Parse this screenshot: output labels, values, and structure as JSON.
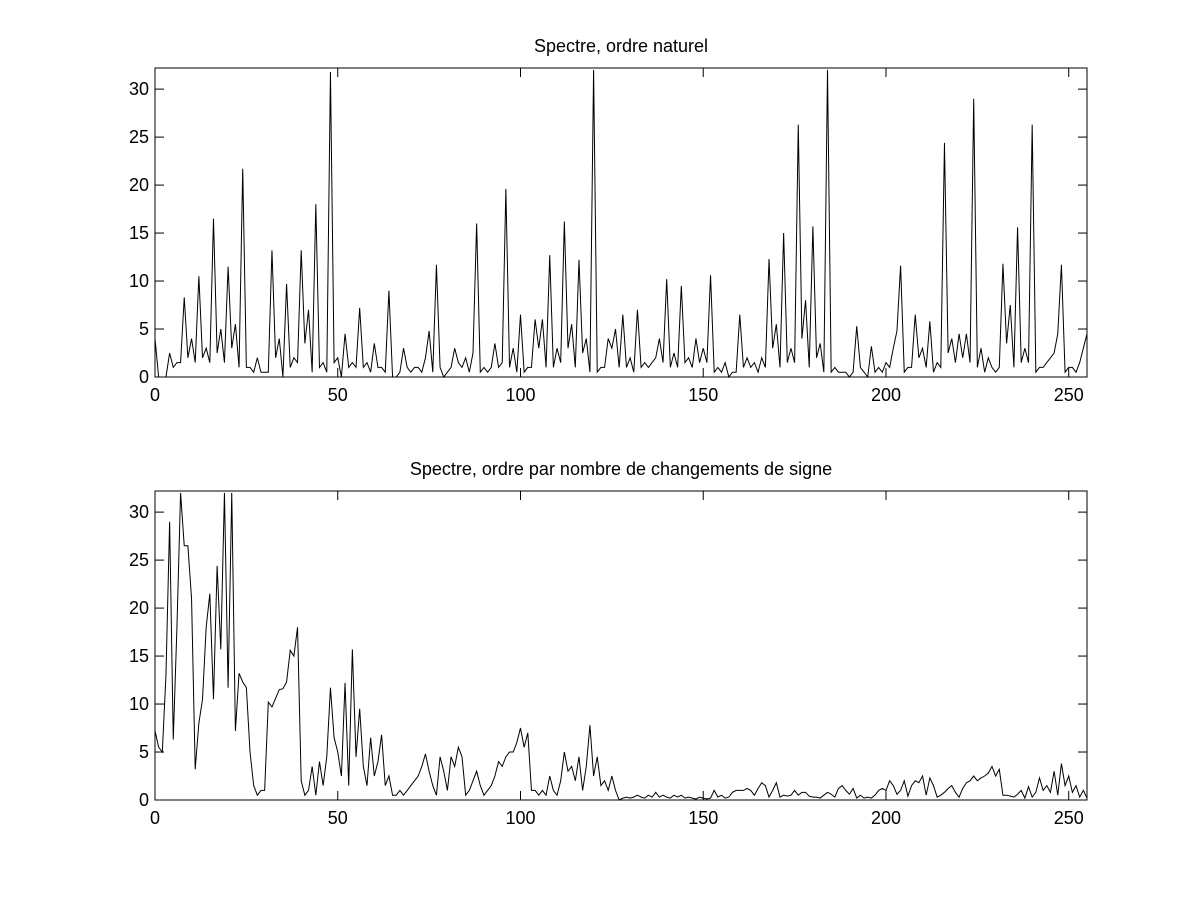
{
  "chart_data": [
    {
      "type": "line",
      "title": "Spectre, ordre naturel",
      "color": "#000000",
      "x": [
        0,
        1,
        2,
        3,
        4,
        5,
        6,
        7,
        8,
        9,
        10,
        11,
        12,
        13,
        14,
        15,
        16,
        17,
        18,
        19,
        20,
        21,
        22,
        23,
        24,
        25,
        26,
        27,
        28,
        29,
        30,
        31,
        32,
        33,
        34,
        35,
        36,
        37,
        38,
        39,
        40,
        41,
        42,
        43,
        44,
        45,
        46,
        47,
        48,
        49,
        50,
        51,
        52,
        53,
        54,
        55,
        56,
        57,
        58,
        59,
        60,
        61,
        62,
        63,
        64,
        65,
        66,
        67,
        68,
        69,
        70,
        71,
        72,
        73,
        74,
        75,
        76,
        77,
        78,
        79,
        80,
        81,
        82,
        83,
        84,
        85,
        86,
        87,
        88,
        89,
        90,
        91,
        92,
        93,
        94,
        95,
        96,
        97,
        98,
        99,
        100,
        101,
        102,
        103,
        104,
        105,
        106,
        107,
        108,
        109,
        110,
        111,
        112,
        113,
        114,
        115,
        116,
        117,
        118,
        119,
        120,
        121,
        122,
        123,
        124,
        125,
        126,
        127,
        128,
        129,
        130,
        131,
        132,
        133,
        134,
        135,
        136,
        137,
        138,
        139,
        140,
        141,
        142,
        143,
        144,
        145,
        146,
        147,
        148,
        149,
        150,
        151,
        152,
        153,
        154,
        155,
        156,
        157,
        158,
        159,
        160,
        161,
        162,
        163,
        164,
        165,
        166,
        167,
        168,
        169,
        170,
        171,
        172,
        173,
        174,
        175,
        176,
        177,
        178,
        179,
        180,
        181,
        182,
        183,
        184,
        185,
        186,
        187,
        188,
        189,
        190,
        191,
        192,
        193,
        194,
        195,
        196,
        197,
        198,
        199,
        200,
        201,
        202,
        203,
        204,
        205,
        206,
        207,
        208,
        209,
        210,
        211,
        212,
        213,
        214,
        215,
        216,
        217,
        218,
        219,
        220,
        221,
        222,
        223,
        224,
        225,
        226,
        227,
        228,
        229,
        230,
        231,
        232,
        233,
        234,
        235,
        236,
        237,
        238,
        239,
        240,
        241,
        242,
        243,
        244,
        245,
        246,
        247,
        248,
        249,
        250,
        251,
        252,
        253,
        254,
        255
      ],
      "values": [
        4,
        0,
        0,
        0,
        2.5,
        1,
        1.5,
        1.5,
        8.3,
        2,
        4,
        1.5,
        10.5,
        2,
        3,
        1.5,
        16.5,
        2.5,
        5,
        1.5,
        11.5,
        3,
        5.5,
        1,
        21.7,
        1,
        1,
        0.5,
        2,
        0.5,
        0.5,
        0.5,
        13.2,
        2,
        4,
        0,
        9.7,
        1,
        2,
        1.5,
        13.2,
        3.5,
        7,
        0.5,
        18,
        1,
        1.5,
        0.5,
        31.8,
        1.5,
        2,
        0,
        4.5,
        1,
        1.5,
        1,
        7.2,
        1,
        1.5,
        0.5,
        3.5,
        1,
        1,
        0.5,
        9,
        0,
        0,
        0.5,
        3,
        1,
        0.5,
        1,
        1,
        0.5,
        2,
        4.8,
        0.5,
        11.7,
        1,
        0,
        0.5,
        1,
        3,
        1.5,
        1,
        2,
        0.5,
        2.5,
        16,
        0.5,
        1,
        0.5,
        1,
        3.5,
        1,
        1.5,
        19.6,
        1,
        3,
        0.5,
        6.5,
        0.5,
        1,
        1,
        6,
        3,
        6,
        1,
        12.7,
        1,
        3,
        1.5,
        16.2,
        3,
        5.5,
        1,
        12.2,
        2.5,
        4,
        0.5,
        32,
        0.5,
        1,
        1,
        4,
        3,
        5,
        1,
        6.5,
        1,
        2,
        0.5,
        7,
        1,
        1.5,
        1,
        1.5,
        2,
        4,
        1.5,
        10.2,
        1,
        2.5,
        1,
        9.5,
        1.5,
        2,
        1,
        4,
        1.5,
        3,
        1.5,
        10.6,
        0.5,
        1,
        0.5,
        1.5,
        0,
        0.5,
        0.5,
        6.5,
        1,
        2,
        1,
        1.5,
        0.5,
        2,
        1,
        12.3,
        3,
        5.5,
        1,
        15,
        1.5,
        3,
        1.5,
        26.3,
        4,
        8,
        1,
        15.7,
        2,
        3.5,
        0.5,
        32,
        0.5,
        1,
        0.5,
        0.5,
        0.5,
        0,
        0.5,
        5.3,
        1,
        0.5,
        0,
        3.2,
        0.5,
        1,
        0.5,
        1.5,
        1,
        3,
        4.8,
        11.6,
        0.5,
        1,
        1,
        6.5,
        2,
        3,
        1,
        5.8,
        0.5,
        1.5,
        1,
        24.4,
        2.5,
        4,
        1.5,
        4.5,
        2,
        4.5,
        1.5,
        29,
        1,
        3,
        0.5,
        2,
        1,
        0.5,
        1,
        11.8,
        3.5,
        7.5,
        1,
        15.6,
        1.5,
        3,
        1.5,
        26.3,
        0.5,
        1,
        1,
        1.5,
        2,
        2.5,
        4.5,
        11.7,
        0.5,
        1,
        1,
        0.5,
        1.5,
        3,
        4.5
      ],
      "xlim": [
        0,
        255
      ],
      "ylim": [
        0,
        32.2
      ],
      "xticks": [
        0,
        50,
        100,
        150,
        200,
        250
      ],
      "yticks": [
        0,
        5,
        10,
        15,
        20,
        25,
        30
      ]
    },
    {
      "type": "line",
      "title": "Spectre, ordre par nombre de changements de signe",
      "color": "#000000",
      "x": [
        0,
        1,
        2,
        3,
        4,
        5,
        6,
        7,
        8,
        9,
        10,
        11,
        12,
        13,
        14,
        15,
        16,
        17,
        18,
        19,
        20,
        21,
        22,
        23,
        24,
        25,
        26,
        27,
        28,
        29,
        30,
        31,
        32,
        33,
        34,
        35,
        36,
        37,
        38,
        39,
        40,
        41,
        42,
        43,
        44,
        45,
        46,
        47,
        48,
        49,
        50,
        51,
        52,
        53,
        54,
        55,
        56,
        57,
        58,
        59,
        60,
        61,
        62,
        63,
        64,
        65,
        66,
        67,
        68,
        69,
        70,
        71,
        72,
        73,
        74,
        75,
        76,
        77,
        78,
        79,
        80,
        81,
        82,
        83,
        84,
        85,
        86,
        87,
        88,
        89,
        90,
        91,
        92,
        93,
        94,
        95,
        96,
        97,
        98,
        99,
        100,
        101,
        102,
        103,
        104,
        105,
        106,
        107,
        108,
        109,
        110,
        111,
        112,
        113,
        114,
        115,
        116,
        117,
        118,
        119,
        120,
        121,
        122,
        123,
        124,
        125,
        126,
        127,
        128,
        129,
        130,
        131,
        132,
        133,
        134,
        135,
        136,
        137,
        138,
        139,
        140,
        141,
        142,
        143,
        144,
        145,
        146,
        147,
        148,
        149,
        150,
        151,
        152,
        153,
        154,
        155,
        156,
        157,
        158,
        159,
        160,
        161,
        162,
        163,
        164,
        165,
        166,
        167,
        168,
        169,
        170,
        171,
        172,
        173,
        174,
        175,
        176,
        177,
        178,
        179,
        180,
        181,
        182,
        183,
        184,
        185,
        186,
        187,
        188,
        189,
        190,
        191,
        192,
        193,
        194,
        195,
        196,
        197,
        198,
        199,
        200,
        201,
        202,
        203,
        204,
        205,
        206,
        207,
        208,
        209,
        210,
        211,
        212,
        213,
        214,
        215,
        216,
        217,
        218,
        219,
        220,
        221,
        222,
        223,
        224,
        225,
        226,
        227,
        228,
        229,
        230,
        231,
        232,
        233,
        234,
        235,
        236,
        237,
        238,
        239,
        240,
        241,
        242,
        243,
        244,
        245,
        246,
        247,
        248,
        249,
        250,
        251,
        252,
        253,
        254,
        255
      ],
      "values": [
        7.2,
        5.5,
        5,
        13,
        29,
        6.3,
        18,
        32,
        26.5,
        26.5,
        21,
        3.2,
        8,
        10.5,
        18,
        21.5,
        10.5,
        24.4,
        15.7,
        32,
        11.7,
        32,
        7.2,
        13.2,
        12.3,
        11.7,
        5,
        1.5,
        0.5,
        1,
        1,
        10.2,
        9.7,
        10.6,
        11.5,
        11.6,
        12.3,
        15.6,
        15,
        18,
        2,
        0.5,
        1,
        3.5,
        0.5,
        4,
        1.5,
        4.5,
        11.7,
        6.5,
        5,
        2.5,
        12.2,
        1.5,
        15.7,
        4.5,
        9.5,
        3.5,
        1.5,
        6.5,
        2.5,
        4,
        6.8,
        1.5,
        2.5,
        0.5,
        0.5,
        1,
        0.5,
        1,
        1.5,
        2,
        2.5,
        3.5,
        4.8,
        3,
        1.5,
        0.5,
        4.5,
        3,
        1,
        4.5,
        3.5,
        5.5,
        4.5,
        0.5,
        1,
        2,
        3,
        1.5,
        0.5,
        1,
        1.5,
        2.5,
        4,
        3.5,
        4.5,
        5,
        5,
        6,
        7.5,
        5.5,
        7,
        1,
        1,
        0.5,
        1,
        0.5,
        2.5,
        1,
        0.5,
        2,
        5,
        3,
        3.5,
        2,
        4.5,
        1,
        3.5,
        7.8,
        2.5,
        4.5,
        1.5,
        2,
        1,
        2.5,
        1,
        0,
        0.2,
        0.3,
        0.2,
        0.3,
        0.5,
        0.3,
        0.2,
        0.5,
        0.3,
        0.8,
        0.3,
        0.5,
        0.3,
        0.2,
        0.5,
        0.3,
        0.5,
        0.2,
        0.3,
        0.2,
        0.1,
        0.3,
        0.2,
        0.1,
        0.2,
        1,
        0.3,
        0.5,
        0.2,
        0.3,
        0.8,
        1,
        1,
        1,
        1.2,
        1,
        0.5,
        1.2,
        1.8,
        1.5,
        0.3,
        1,
        1.8,
        0.3,
        0.5,
        0.4,
        0.5,
        1,
        0.5,
        0.8,
        0.8,
        0.4,
        0.3,
        0.3,
        0.2,
        0.5,
        0.8,
        0.6,
        0.3,
        1.2,
        1.5,
        1,
        0.6,
        1.2,
        0.2,
        0.5,
        0.2,
        0.3,
        0.2,
        0.5,
        1,
        1.2,
        1,
        2,
        1.5,
        0.6,
        1,
        2,
        0.4,
        1.5,
        2,
        1.8,
        2.5,
        0.5,
        2.3,
        1.5,
        0.3,
        0.5,
        0.8,
        1.2,
        1.5,
        0.8,
        0.3,
        1.2,
        1.8,
        2,
        2.5,
        2,
        2.3,
        2.5,
        2.8,
        3.5,
        2.5,
        3.2,
        0.5,
        0.5,
        0.4,
        0.3,
        0.6,
        1,
        0.2,
        1.4,
        0.3,
        0.8,
        2.3,
        1,
        1.5,
        0.8,
        3,
        0.5,
        3.8,
        1.5,
        2.5,
        0.8,
        1.5,
        0.3,
        1,
        0.2
      ],
      "xlim": [
        0,
        255
      ],
      "ylim": [
        0,
        32.2
      ],
      "xticks": [
        0,
        50,
        100,
        150,
        200,
        250
      ],
      "yticks": [
        0,
        5,
        10,
        15,
        20,
        25,
        30
      ]
    }
  ]
}
